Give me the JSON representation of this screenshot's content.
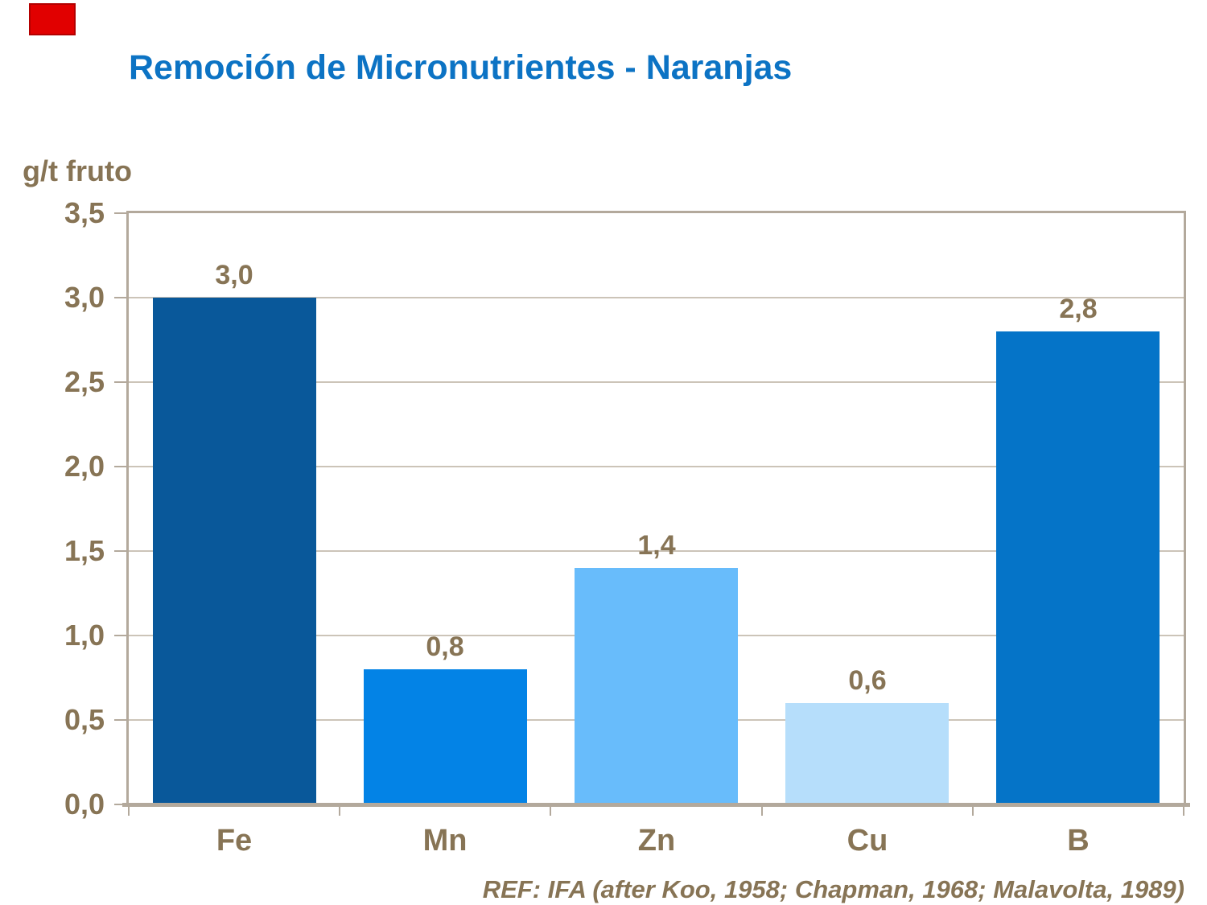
{
  "slide": {
    "title": "Remoción de Micronutrientes - Naranjas",
    "title_color": "#0c73c4",
    "reference": "REF: IFA (after Koo, 1958; Chapman, 1968; Malavolta, 1989)",
    "decoration": {
      "red_rect_color": "#e10000"
    }
  },
  "chart_data": {
    "type": "bar",
    "title": "Remoción de Micronutrientes - Naranjas",
    "xlabel": "",
    "ylabel": "g/t fruto",
    "categories": [
      "Fe",
      "Mn",
      "Zn",
      "Cu",
      "B"
    ],
    "values": [
      3.0,
      0.8,
      1.4,
      0.6,
      2.8
    ],
    "value_labels": [
      "3,0",
      "0,8",
      "1,4",
      "0,6",
      "2,8"
    ],
    "ylim": [
      0,
      3.5
    ],
    "ytick_step": 0.5,
    "ytick_labels": [
      "0,0",
      "0,5",
      "1,0",
      "1,5",
      "2,0",
      "2,5",
      "3,0",
      "3,5"
    ],
    "grid": true,
    "legend": "none",
    "bar_colors": [
      "#09589a",
      "#0383e6",
      "#68bcfb",
      "#b6defb",
      "#0574c8"
    ],
    "text_color": "#877455",
    "grid_color": "#ccc4b8",
    "frame_color": "#b3a99c",
    "plot_background": "#ffffff"
  }
}
